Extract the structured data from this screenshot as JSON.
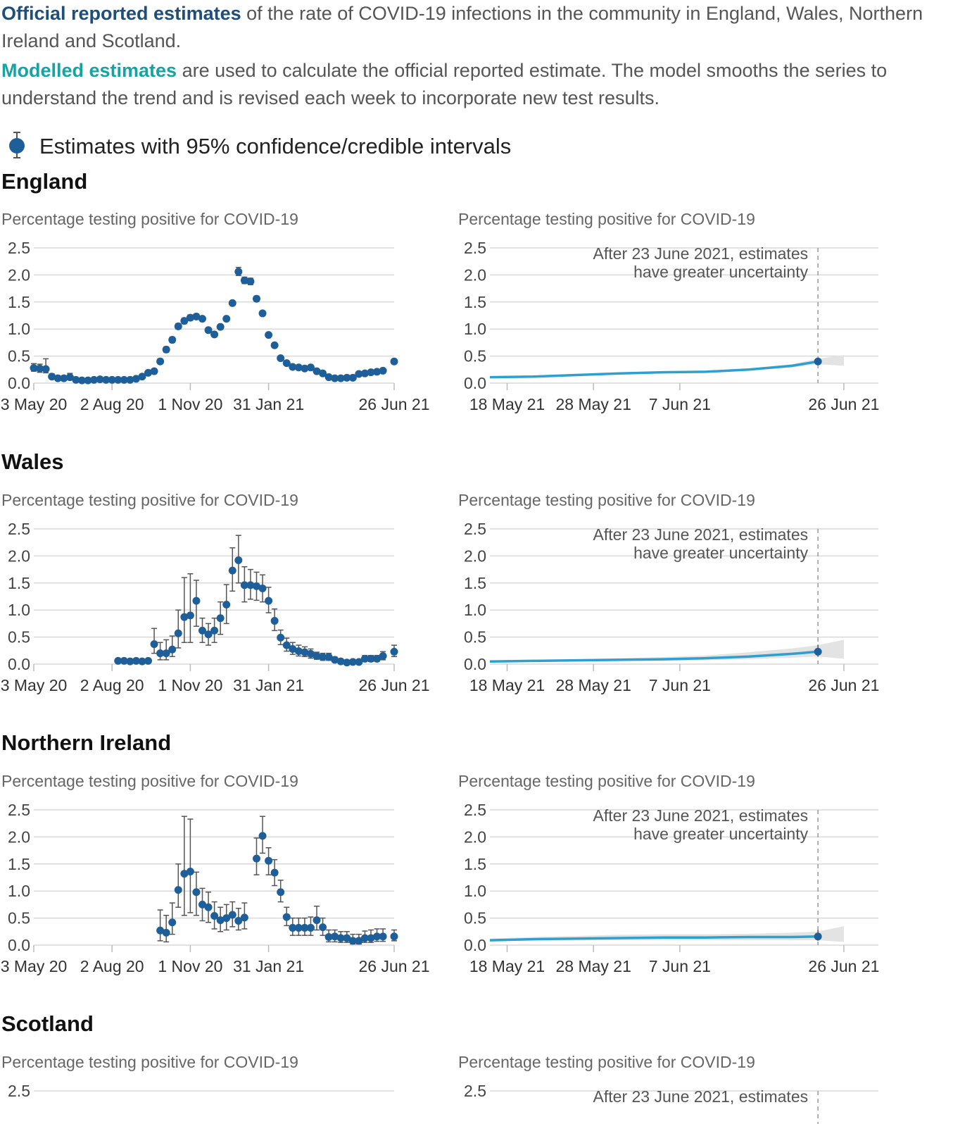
{
  "intro": {
    "p1_highlight": "Official reported estimates",
    "p1_rest": " of the rate of COVID-19 infections in the community in England, Wales, Northern Ireland and Scotland.",
    "p2_highlight": "Modelled estimates",
    "p2_rest": " are used to calculate the official reported estimate. The model smooths the series to understand the trend and is revised each week to incorporate new test results."
  },
  "legend": {
    "label": "Estimates with 95% confidence/credible intervals",
    "icon": "point-with-errorbar-icon"
  },
  "colors": {
    "official": "#1f4e79",
    "modelled": "#17a3a3",
    "point": "#1f5f99",
    "line": "#2f9fd0",
    "band": "#e3e3e3",
    "grid": "#d9d9d9",
    "errorbar": "#555555"
  },
  "regions": [
    {
      "name": "England"
    },
    {
      "name": "Wales"
    },
    {
      "name": "Northern Ireland"
    },
    {
      "name": "Scotland"
    }
  ],
  "chart_data": [
    {
      "region": "England",
      "type": "scatter",
      "title": "Percentage testing positive for COVID-19",
      "ylim": [
        0,
        2.5
      ],
      "yticks": [
        "0.0",
        "0.5",
        "1.0",
        "1.5",
        "2.0",
        "2.5"
      ],
      "xlim": [
        "2020-05-03",
        "2021-06-26"
      ],
      "xticks": [
        {
          "date": "2020-05-03",
          "label": "3 May 20"
        },
        {
          "date": "2020-08-02",
          "label": "2 Aug 20"
        },
        {
          "date": "2020-11-01",
          "label": "1 Nov 20"
        },
        {
          "date": "2021-01-31",
          "label": "31 Jan 21"
        },
        {
          "date": "2021-06-26",
          "label": "26 Jun 21"
        }
      ],
      "dates": [
        "2020-05-03",
        "2020-05-10",
        "2020-05-17",
        "2020-05-24",
        "2020-05-31",
        "2020-06-07",
        "2020-06-14",
        "2020-06-21",
        "2020-06-28",
        "2020-07-05",
        "2020-07-12",
        "2020-07-19",
        "2020-07-26",
        "2020-08-02",
        "2020-08-09",
        "2020-08-16",
        "2020-08-23",
        "2020-08-30",
        "2020-09-06",
        "2020-09-13",
        "2020-09-20",
        "2020-09-27",
        "2020-10-04",
        "2020-10-11",
        "2020-10-18",
        "2020-10-25",
        "2020-11-01",
        "2020-11-08",
        "2020-11-15",
        "2020-11-22",
        "2020-11-29",
        "2020-12-06",
        "2020-12-13",
        "2020-12-20",
        "2020-12-27",
        "2021-01-03",
        "2021-01-10",
        "2021-01-17",
        "2021-01-24",
        "2021-01-31",
        "2021-02-07",
        "2021-02-14",
        "2021-02-21",
        "2021-02-28",
        "2021-03-07",
        "2021-03-14",
        "2021-03-21",
        "2021-03-28",
        "2021-04-04",
        "2021-04-11",
        "2021-04-18",
        "2021-04-25",
        "2021-05-02",
        "2021-05-09",
        "2021-05-16",
        "2021-05-23",
        "2021-05-30",
        "2021-06-06",
        "2021-06-13",
        "2021-06-26"
      ],
      "values": [
        0.28,
        0.27,
        0.26,
        0.12,
        0.09,
        0.09,
        0.11,
        0.06,
        0.05,
        0.05,
        0.06,
        0.07,
        0.06,
        0.06,
        0.06,
        0.06,
        0.06,
        0.08,
        0.12,
        0.19,
        0.22,
        0.4,
        0.62,
        0.8,
        1.05,
        1.15,
        1.21,
        1.23,
        1.19,
        0.98,
        0.9,
        1.04,
        1.19,
        1.48,
        2.06,
        1.9,
        1.88,
        1.56,
        1.29,
        0.89,
        0.7,
        0.46,
        0.37,
        0.3,
        0.29,
        0.27,
        0.29,
        0.22,
        0.18,
        0.11,
        0.09,
        0.09,
        0.1,
        0.1,
        0.17,
        0.18,
        0.2,
        0.21,
        0.23,
        0.4
      ],
      "lower": [
        0.22,
        0.2,
        0.19,
        0.08,
        0.06,
        0.06,
        0.07,
        0.04,
        0.03,
        0.03,
        0.04,
        0.05,
        0.04,
        0.04,
        0.04,
        0.04,
        0.04,
        0.06,
        0.1,
        0.16,
        0.19,
        0.36,
        0.57,
        0.75,
        1.0,
        1.1,
        1.16,
        1.19,
        1.15,
        0.94,
        0.86,
        1.0,
        1.15,
        1.44,
        1.99,
        1.84,
        1.82,
        1.51,
        1.25,
        0.86,
        0.67,
        0.43,
        0.34,
        0.28,
        0.27,
        0.25,
        0.26,
        0.2,
        0.16,
        0.09,
        0.07,
        0.07,
        0.08,
        0.08,
        0.14,
        0.15,
        0.17,
        0.18,
        0.2,
        0.36
      ],
      "upper": [
        0.36,
        0.35,
        0.45,
        0.17,
        0.13,
        0.13,
        0.18,
        0.09,
        0.07,
        0.07,
        0.08,
        0.09,
        0.08,
        0.08,
        0.08,
        0.08,
        0.08,
        0.1,
        0.14,
        0.22,
        0.26,
        0.45,
        0.67,
        0.85,
        1.1,
        1.2,
        1.26,
        1.28,
        1.23,
        1.02,
        0.94,
        1.08,
        1.23,
        1.52,
        2.14,
        1.96,
        1.94,
        1.61,
        1.33,
        0.92,
        0.73,
        0.49,
        0.4,
        0.33,
        0.32,
        0.3,
        0.32,
        0.25,
        0.21,
        0.14,
        0.12,
        0.12,
        0.13,
        0.13,
        0.2,
        0.21,
        0.23,
        0.24,
        0.26,
        0.44
      ]
    },
    {
      "region": "England",
      "type": "line",
      "title": "Percentage testing positive for COVID-19",
      "ylim": [
        0,
        2.5
      ],
      "yticks": [
        "0.0",
        "0.5",
        "1.0",
        "1.5",
        "2.0",
        "2.5"
      ],
      "xlim": [
        "2021-05-16",
        "2021-06-30"
      ],
      "xticks": [
        {
          "date": "2021-05-18",
          "label": "18 May 21"
        },
        {
          "date": "2021-05-28",
          "label": "28 May 21"
        },
        {
          "date": "2021-06-07",
          "label": "7 Jun 21"
        },
        {
          "date": "2021-06-26",
          "label": "26 Jun 21"
        }
      ],
      "annotation": {
        "date": "2021-06-23",
        "line1": "After 23 June 2021, estimates",
        "line2": "have greater uncertainty"
      },
      "x": [
        "2021-05-16",
        "2021-05-21",
        "2021-05-26",
        "2021-05-31",
        "2021-06-05",
        "2021-06-10",
        "2021-06-15",
        "2021-06-20",
        "2021-06-23"
      ],
      "values": [
        0.11,
        0.12,
        0.15,
        0.18,
        0.2,
        0.21,
        0.25,
        0.32,
        0.4
      ],
      "band_lower": [
        0.1,
        0.11,
        0.14,
        0.17,
        0.19,
        0.2,
        0.23,
        0.29,
        0.35
      ],
      "band_upper": [
        0.12,
        0.13,
        0.16,
        0.19,
        0.21,
        0.22,
        0.27,
        0.35,
        0.45
      ],
      "band_end": {
        "date": "2021-06-26",
        "lower": 0.32,
        "upper": 0.52
      },
      "point": {
        "date": "2021-06-23",
        "value": 0.4,
        "lower": 0.36,
        "upper": 0.44
      }
    },
    {
      "region": "Wales",
      "type": "scatter",
      "title": "Percentage testing positive for COVID-19",
      "ylim": [
        0,
        2.5
      ],
      "yticks": [
        "0.0",
        "0.5",
        "1.0",
        "1.5",
        "2.0",
        "2.5"
      ],
      "xlim": [
        "2020-05-03",
        "2021-06-26"
      ],
      "xticks": [
        {
          "date": "2020-05-03",
          "label": "3 May 20"
        },
        {
          "date": "2020-08-02",
          "label": "2 Aug 20"
        },
        {
          "date": "2020-11-01",
          "label": "1 Nov 20"
        },
        {
          "date": "2021-01-31",
          "label": "31 Jan 21"
        },
        {
          "date": "2021-06-26",
          "label": "26 Jun 21"
        }
      ],
      "dates": [
        "2020-08-09",
        "2020-08-16",
        "2020-08-23",
        "2020-08-30",
        "2020-09-06",
        "2020-09-13",
        "2020-09-20",
        "2020-09-27",
        "2020-10-04",
        "2020-10-11",
        "2020-10-18",
        "2020-10-25",
        "2020-11-01",
        "2020-11-08",
        "2020-11-15",
        "2020-11-22",
        "2020-11-29",
        "2020-12-06",
        "2020-12-13",
        "2020-12-20",
        "2020-12-27",
        "2021-01-03",
        "2021-01-10",
        "2021-01-17",
        "2021-01-24",
        "2021-01-31",
        "2021-02-07",
        "2021-02-14",
        "2021-02-21",
        "2021-02-28",
        "2021-03-07",
        "2021-03-14",
        "2021-03-21",
        "2021-03-28",
        "2021-04-04",
        "2021-04-11",
        "2021-04-18",
        "2021-04-25",
        "2021-05-02",
        "2021-05-09",
        "2021-05-16",
        "2021-05-23",
        "2021-05-30",
        "2021-06-06",
        "2021-06-13",
        "2021-06-26"
      ],
      "values": [
        0.06,
        0.06,
        0.05,
        0.06,
        0.05,
        0.06,
        0.37,
        0.2,
        0.2,
        0.27,
        0.57,
        0.87,
        0.9,
        1.17,
        0.62,
        0.55,
        0.62,
        0.85,
        1.1,
        1.73,
        1.92,
        1.46,
        1.46,
        1.44,
        1.4,
        1.17,
        0.8,
        0.49,
        0.35,
        0.28,
        0.24,
        0.22,
        0.19,
        0.15,
        0.13,
        0.13,
        0.08,
        0.05,
        0.03,
        0.04,
        0.04,
        0.1,
        0.1,
        0.1,
        0.15,
        0.23
      ],
      "lower": [
        0.04,
        0.04,
        0.03,
        0.04,
        0.03,
        0.04,
        0.2,
        0.08,
        0.08,
        0.14,
        0.3,
        0.4,
        0.4,
        0.7,
        0.4,
        0.35,
        0.4,
        0.55,
        0.75,
        1.35,
        1.5,
        1.15,
        1.2,
        1.18,
        1.15,
        0.95,
        0.62,
        0.36,
        0.24,
        0.18,
        0.15,
        0.14,
        0.11,
        0.09,
        0.07,
        0.07,
        0.04,
        0.02,
        0.01,
        0.02,
        0.02,
        0.05,
        0.05,
        0.05,
        0.08,
        0.14
      ],
      "upper": [
        0.08,
        0.08,
        0.07,
        0.08,
        0.07,
        0.08,
        0.66,
        0.4,
        0.45,
        0.52,
        1.0,
        1.6,
        1.67,
        1.55,
        0.85,
        0.75,
        0.85,
        1.15,
        1.47,
        2.15,
        2.38,
        1.8,
        1.75,
        1.7,
        1.65,
        1.42,
        1.02,
        0.63,
        0.48,
        0.4,
        0.35,
        0.32,
        0.28,
        0.22,
        0.2,
        0.2,
        0.13,
        0.09,
        0.06,
        0.07,
        0.07,
        0.16,
        0.16,
        0.16,
        0.23,
        0.35
      ]
    },
    {
      "region": "Wales",
      "type": "line",
      "title": "Percentage testing positive for COVID-19",
      "ylim": [
        0,
        2.5
      ],
      "yticks": [
        "0.0",
        "0.5",
        "1.0",
        "1.5",
        "2.0",
        "2.5"
      ],
      "xlim": [
        "2021-05-16",
        "2021-06-30"
      ],
      "xticks": [
        {
          "date": "2021-05-18",
          "label": "18 May 21"
        },
        {
          "date": "2021-05-28",
          "label": "28 May 21"
        },
        {
          "date": "2021-06-07",
          "label": "7 Jun 21"
        },
        {
          "date": "2021-06-26",
          "label": "26 Jun 21"
        }
      ],
      "annotation": {
        "date": "2021-06-23",
        "line1": "After 23 June 2021, estimates",
        "line2": "have greater uncertainty"
      },
      "x": [
        "2021-05-16",
        "2021-05-21",
        "2021-05-26",
        "2021-05-31",
        "2021-06-05",
        "2021-06-10",
        "2021-06-15",
        "2021-06-20",
        "2021-06-23"
      ],
      "values": [
        0.05,
        0.06,
        0.07,
        0.08,
        0.09,
        0.11,
        0.14,
        0.19,
        0.23
      ],
      "band_lower": [
        0.04,
        0.05,
        0.05,
        0.06,
        0.06,
        0.07,
        0.09,
        0.12,
        0.14
      ],
      "band_upper": [
        0.06,
        0.07,
        0.09,
        0.11,
        0.13,
        0.16,
        0.22,
        0.29,
        0.35
      ],
      "band_end": {
        "date": "2021-06-26",
        "lower": 0.1,
        "upper": 0.45
      },
      "point": {
        "date": "2021-06-23",
        "value": 0.23,
        "lower": 0.14,
        "upper": 0.36
      }
    },
    {
      "region": "Northern Ireland",
      "type": "scatter",
      "title": "Percentage testing positive for COVID-19",
      "ylim": [
        0,
        2.5
      ],
      "yticks": [
        "0.0",
        "0.5",
        "1.0",
        "1.5",
        "2.0",
        "2.5"
      ],
      "xlim": [
        "2020-05-03",
        "2021-06-26"
      ],
      "xticks": [
        {
          "date": "2020-05-03",
          "label": "3 May 20"
        },
        {
          "date": "2020-08-02",
          "label": "2 Aug 20"
        },
        {
          "date": "2020-11-01",
          "label": "1 Nov 20"
        },
        {
          "date": "2021-01-31",
          "label": "31 Jan 21"
        },
        {
          "date": "2021-06-26",
          "label": "26 Jun 21"
        }
      ],
      "dates": [
        "2020-09-27",
        "2020-10-04",
        "2020-10-11",
        "2020-10-18",
        "2020-10-25",
        "2020-11-01",
        "2020-11-08",
        "2020-11-15",
        "2020-11-22",
        "2020-11-29",
        "2020-12-06",
        "2020-12-13",
        "2020-12-20",
        "2020-12-27",
        "2021-01-03",
        "2021-01-17",
        "2021-01-24",
        "2021-01-31",
        "2021-02-07",
        "2021-02-14",
        "2021-02-21",
        "2021-02-28",
        "2021-03-07",
        "2021-03-14",
        "2021-03-21",
        "2021-03-28",
        "2021-04-04",
        "2021-04-11",
        "2021-04-18",
        "2021-04-25",
        "2021-05-02",
        "2021-05-09",
        "2021-05-16",
        "2021-05-23",
        "2021-05-30",
        "2021-06-06",
        "2021-06-13",
        "2021-06-26"
      ],
      "values": [
        0.27,
        0.23,
        0.42,
        1.02,
        1.32,
        1.36,
        0.98,
        0.75,
        0.7,
        0.54,
        0.46,
        0.5,
        0.56,
        0.45,
        0.51,
        1.6,
        2.02,
        1.56,
        1.34,
        0.98,
        0.52,
        0.32,
        0.32,
        0.32,
        0.32,
        0.46,
        0.33,
        0.15,
        0.16,
        0.13,
        0.13,
        0.08,
        0.08,
        0.13,
        0.13,
        0.16,
        0.16,
        0.16
      ],
      "lower": [
        0.08,
        0.06,
        0.2,
        0.7,
        0.55,
        0.6,
        0.55,
        0.45,
        0.42,
        0.3,
        0.25,
        0.28,
        0.34,
        0.28,
        0.3,
        1.3,
        1.7,
        1.3,
        1.1,
        0.8,
        0.36,
        0.18,
        0.18,
        0.18,
        0.18,
        0.28,
        0.18,
        0.06,
        0.06,
        0.05,
        0.05,
        0.02,
        0.02,
        0.05,
        0.05,
        0.07,
        0.07,
        0.08
      ],
      "upper": [
        0.65,
        0.55,
        0.78,
        1.5,
        2.38,
        2.33,
        1.35,
        1.05,
        0.98,
        0.8,
        0.7,
        0.75,
        0.8,
        0.68,
        0.78,
        1.98,
        2.38,
        1.8,
        1.58,
        1.2,
        0.7,
        0.5,
        0.5,
        0.5,
        0.52,
        0.72,
        0.5,
        0.28,
        0.28,
        0.25,
        0.25,
        0.2,
        0.2,
        0.26,
        0.28,
        0.3,
        0.3,
        0.28
      ]
    },
    {
      "region": "Northern Ireland",
      "type": "line",
      "title": "Percentage testing positive for COVID-19",
      "ylim": [
        0,
        2.5
      ],
      "yticks": [
        "0.0",
        "0.5",
        "1.0",
        "1.5",
        "2.0",
        "2.5"
      ],
      "xlim": [
        "2021-05-16",
        "2021-06-30"
      ],
      "xticks": [
        {
          "date": "2021-05-18",
          "label": "18 May 21"
        },
        {
          "date": "2021-05-28",
          "label": "28 May 21"
        },
        {
          "date": "2021-06-07",
          "label": "7 Jun 21"
        },
        {
          "date": "2021-06-26",
          "label": "26 Jun 21"
        }
      ],
      "annotation": {
        "date": "2021-06-23",
        "line1": "After 23 June 2021, estimates",
        "line2": "have greater uncertainty"
      },
      "x": [
        "2021-05-16",
        "2021-05-21",
        "2021-05-26",
        "2021-05-31",
        "2021-06-05",
        "2021-06-10",
        "2021-06-15",
        "2021-06-20",
        "2021-06-23"
      ],
      "values": [
        0.09,
        0.11,
        0.12,
        0.13,
        0.14,
        0.14,
        0.15,
        0.15,
        0.16
      ],
      "band_lower": [
        0.07,
        0.09,
        0.09,
        0.09,
        0.09,
        0.09,
        0.09,
        0.09,
        0.09
      ],
      "band_upper": [
        0.12,
        0.15,
        0.17,
        0.19,
        0.2,
        0.2,
        0.21,
        0.23,
        0.25
      ],
      "band_end": {
        "date": "2021-06-26",
        "lower": 0.06,
        "upper": 0.35
      },
      "point": {
        "date": "2021-06-23",
        "value": 0.16,
        "lower": 0.08,
        "upper": 0.28
      }
    },
    {
      "region": "Scotland",
      "type": "scatter",
      "title": "Percentage testing positive for COVID-19",
      "ylim": [
        0,
        2.5
      ],
      "yticks": [
        "2.5"
      ]
    },
    {
      "region": "Scotland",
      "type": "line",
      "title": "Percentage testing positive for COVID-19",
      "ylim": [
        0,
        2.5
      ],
      "yticks": [
        "2.5"
      ],
      "xlim": [
        "2021-05-16",
        "2021-06-30"
      ],
      "annotation": {
        "date": "2021-06-23",
        "line1": "After 23 June 2021, estimates",
        "line2": ""
      }
    }
  ]
}
